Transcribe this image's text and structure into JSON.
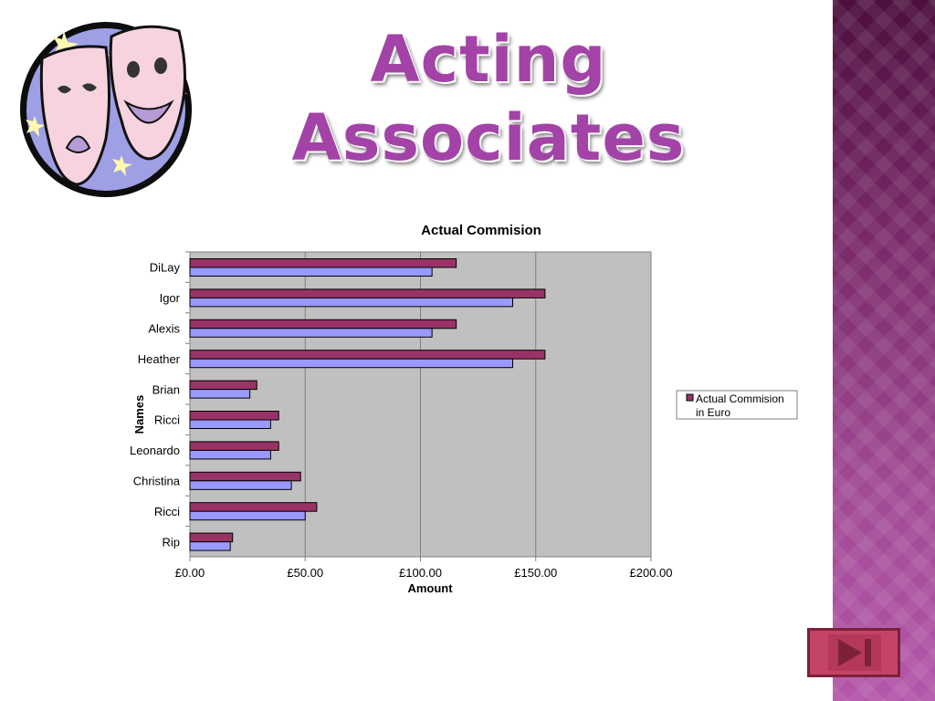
{
  "slide": {
    "title_line1": "Acting",
    "title_line2": "Associates"
  },
  "colors": {
    "accent": "#a343a7",
    "plot_background": "#c0c0c0",
    "series_dark": "#993366",
    "series_light": "#9999ff",
    "band": "#7a2a6a"
  },
  "icons": {
    "logo": "theater-masks-icon",
    "next": "skip-next-icon"
  },
  "chart_data": {
    "type": "bar",
    "orientation": "horizontal",
    "title": "Actual Commision",
    "xlabel": "Amount",
    "ylabel": "Names",
    "categories": [
      "DiLay",
      "Igor",
      "Alexis",
      "Heather",
      "Brian",
      "Ricci",
      "Leonardo",
      "Christina",
      "Ricci",
      "Rip"
    ],
    "series": [
      {
        "name": "Actual Commision in Euro",
        "color": "#993366",
        "values": [
          115.5,
          154,
          115.5,
          154,
          29,
          38.5,
          38.5,
          48,
          55,
          18.5
        ]
      },
      {
        "name": "",
        "color": "#9999ff",
        "values": [
          105,
          140,
          105,
          140,
          26,
          35,
          35,
          44,
          50,
          17.5
        ]
      }
    ],
    "xlim": [
      0,
      200
    ],
    "xticks": [
      "£0.00",
      "£50.00",
      "£100.00",
      "£150.00",
      "£200.00"
    ],
    "grid": true,
    "legend_position": "right"
  }
}
